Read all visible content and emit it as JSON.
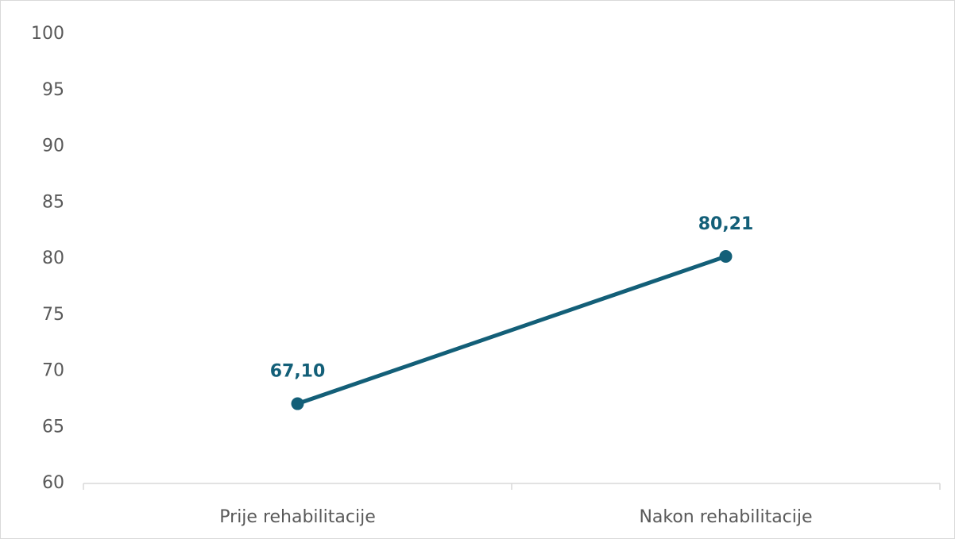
{
  "chart_data": {
    "type": "line",
    "categories": [
      "Prije rehabilitacije",
      "Nakon rehabilitacije"
    ],
    "series": [
      {
        "values": [
          67.1,
          80.21
        ],
        "value_labels": [
          "67,10",
          "80,21"
        ],
        "color": "#135f78"
      }
    ],
    "ylim": [
      60,
      100
    ],
    "yticks": [
      60,
      65,
      70,
      75,
      80,
      85,
      90,
      95,
      100
    ],
    "grid": false
  }
}
